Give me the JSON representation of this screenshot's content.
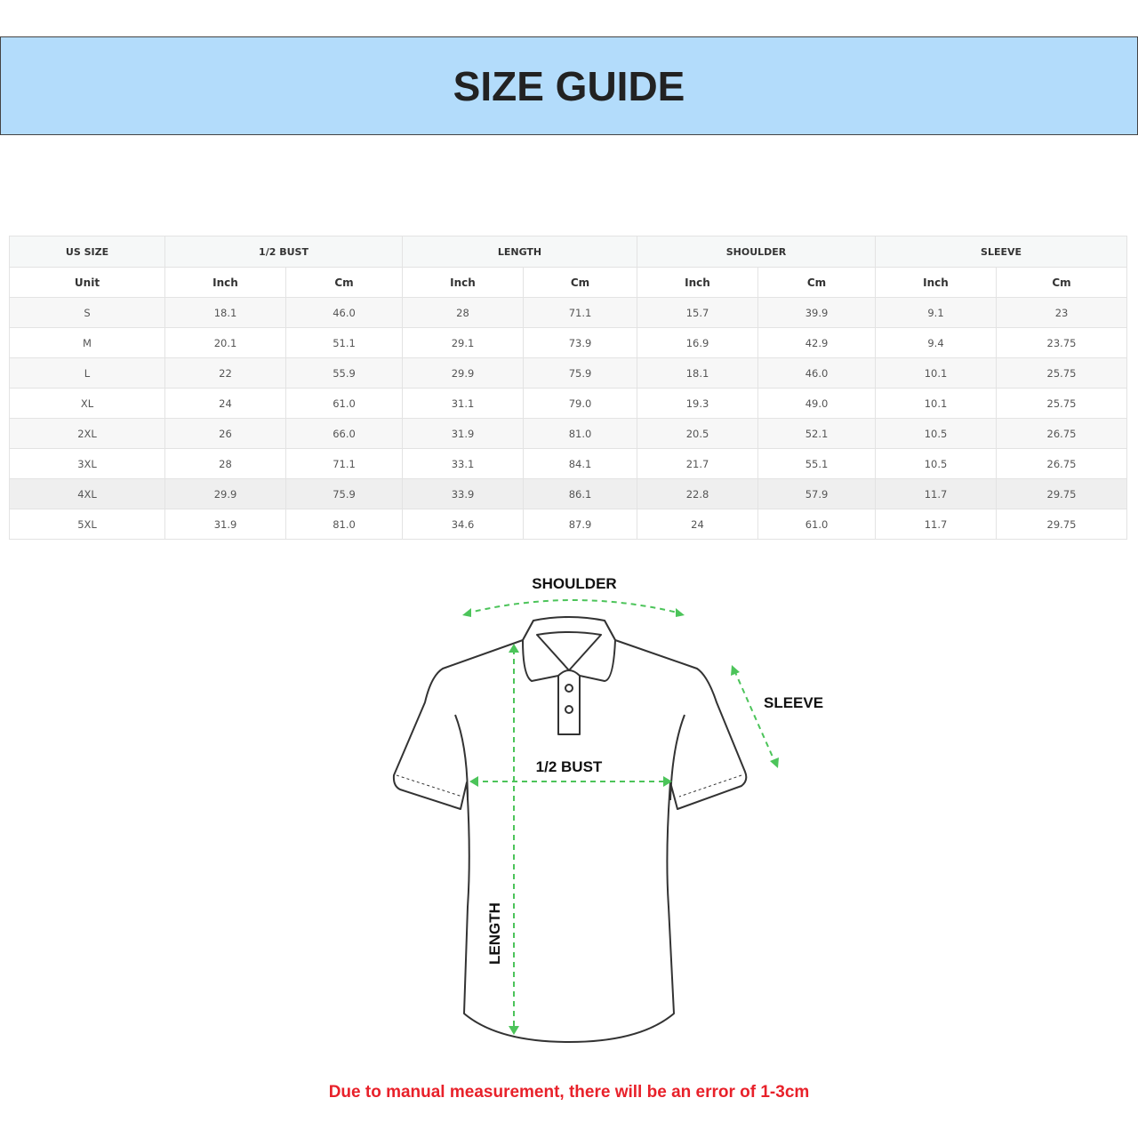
{
  "title": "SIZE GUIDE",
  "table": {
    "groups": [
      "US SIZE",
      "1/2 BUST",
      "LENGTH",
      "SHOULDER",
      "SLEEVE"
    ],
    "units": [
      "Unit",
      "Inch",
      "Cm",
      "Inch",
      "Cm",
      "Inch",
      "Cm",
      "Inch",
      "Cm"
    ],
    "rows": [
      [
        "S",
        "18.1",
        "46.0",
        "28",
        "71.1",
        "15.7",
        "39.9",
        "9.1",
        "23"
      ],
      [
        "M",
        "20.1",
        "51.1",
        "29.1",
        "73.9",
        "16.9",
        "42.9",
        "9.4",
        "23.75"
      ],
      [
        "L",
        "22",
        "55.9",
        "29.9",
        "75.9",
        "18.1",
        "46.0",
        "10.1",
        "25.75"
      ],
      [
        "XL",
        "24",
        "61.0",
        "31.1",
        "79.0",
        "19.3",
        "49.0",
        "10.1",
        "25.75"
      ],
      [
        "2XL",
        "26",
        "66.0",
        "31.9",
        "81.0",
        "20.5",
        "52.1",
        "10.5",
        "26.75"
      ],
      [
        "3XL",
        "28",
        "71.1",
        "33.1",
        "84.1",
        "21.7",
        "55.1",
        "10.5",
        "26.75"
      ],
      [
        "4XL",
        "29.9",
        "75.9",
        "33.9",
        "86.1",
        "22.8",
        "57.9",
        "11.7",
        "29.75"
      ],
      [
        "5XL",
        "31.9",
        "81.0",
        "34.6",
        "87.9",
        "24",
        "61.0",
        "11.7",
        "29.75"
      ]
    ]
  },
  "diagram": {
    "shoulder_label": "SHOULDER",
    "sleeve_label": "SLEEVE",
    "bust_label": "1/2 BUST",
    "length_label": "LENGTH",
    "arrow_color": "#4cc45a"
  },
  "note": "Due to manual measurement, there will be an error of 1-3cm",
  "colors": {
    "banner": "#b3dcfb",
    "note": "#e8212a"
  }
}
